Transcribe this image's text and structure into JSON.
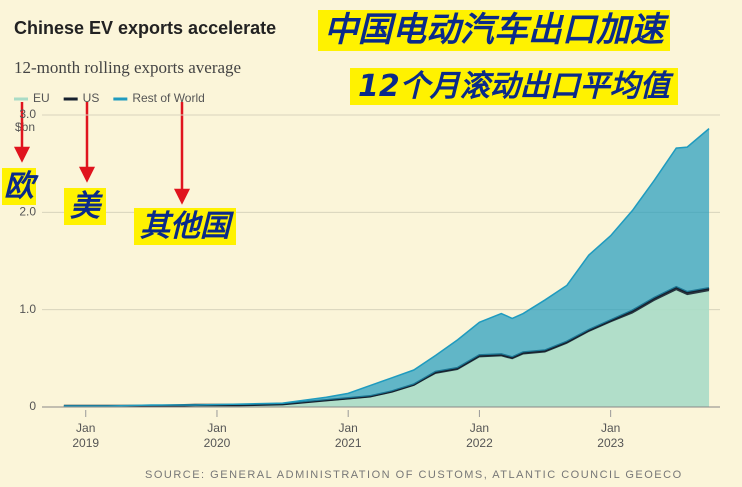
{
  "chart_data": {
    "type": "stacked-area",
    "title": "Chinese EV exports accelerate",
    "subtitle": "12-month rolling exports average",
    "ylabel": "$bn",
    "x": [
      "2018-11",
      "2019-03",
      "2019-07",
      "2019-11",
      "2020-03",
      "2020-07",
      "2020-11",
      "2021-01",
      "2021-03",
      "2021-05",
      "2021-07",
      "2021-09",
      "2021-11",
      "2022-01",
      "2022-03",
      "2022-04",
      "2022-05",
      "2022-07",
      "2022-09",
      "2022-11",
      "2023-01",
      "2023-03",
      "2023-05",
      "2023-07",
      "2023-08",
      "2023-10"
    ],
    "series": [
      {
        "name": "EU",
        "color": "#a9dcc6",
        "values": [
          0.01,
          0.01,
          0.01,
          0.02,
          0.02,
          0.03,
          0.06,
          0.08,
          0.1,
          0.15,
          0.22,
          0.34,
          0.38,
          0.51,
          0.52,
          0.49,
          0.54,
          0.56,
          0.65,
          0.77,
          0.87,
          0.96,
          1.09,
          1.2,
          1.15,
          1.19
        ]
      },
      {
        "name": "US",
        "color": "#16202e",
        "values": [
          0,
          0,
          0,
          0,
          0,
          0,
          0.01,
          0.01,
          0.01,
          0.01,
          0.01,
          0.02,
          0.02,
          0.02,
          0.02,
          0.02,
          0.02,
          0.02,
          0.02,
          0.02,
          0.02,
          0.03,
          0.03,
          0.03,
          0.03,
          0.03
        ]
      },
      {
        "name": "Rest of World",
        "color": "#1f9bbf",
        "values": [
          0,
          0,
          0.01,
          0,
          0.01,
          0.01,
          0.03,
          0.05,
          0.11,
          0.14,
          0.15,
          0.17,
          0.29,
          0.34,
          0.42,
          0.4,
          0.4,
          0.52,
          0.58,
          0.77,
          0.87,
          1.03,
          1.21,
          1.43,
          1.49,
          1.64
        ]
      }
    ],
    "xlim": [
      "2018-09",
      "2023-11"
    ],
    "xticks": [
      {
        "value": "2019-01",
        "label": "Jan 2019"
      },
      {
        "value": "2020-01",
        "label": "Jan 2020"
      },
      {
        "value": "2021-01",
        "label": "Jan 2021"
      },
      {
        "value": "2022-01",
        "label": "Jan 2022"
      },
      {
        "value": "2023-01",
        "label": "Jan 2023"
      }
    ],
    "ylim": [
      0,
      3
    ],
    "yticks": [
      0,
      {
        "value": 1,
        "label": "1.0"
      },
      {
        "value": 2,
        "label": "2.0"
      },
      {
        "value": 3,
        "label": "3.0"
      }
    ],
    "grid": true,
    "source": "SOURCE: GENERAL ADMINISTRATION OF CUSTOMS, ATLANTIC COUNCIL GEOECO",
    "annotations": [
      "中国电动汽车出口加速",
      "12个月滚动出口平均值",
      "欧",
      "美",
      "其他国"
    ]
  }
}
